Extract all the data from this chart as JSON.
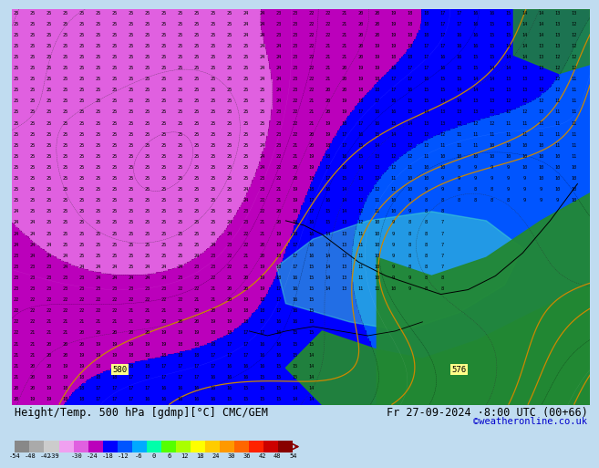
{
  "title_left": "Height/Temp. 500 hPa [gdmp][°C] CMC/GEM",
  "title_right": "Fr 27-09-2024 ·8:00 UTC (00+66)",
  "credit": "©weatheronline.co.uk",
  "colorbar_values": [
    -54,
    -48,
    -42,
    -39,
    -30,
    -24,
    -18,
    -12,
    -6,
    0,
    6,
    12,
    18,
    24,
    30,
    36,
    42,
    48,
    54
  ],
  "colorbar_tick_labels": [
    "-54",
    "-48",
    "-42",
    "-39",
    "-30",
    "-24",
    "-18",
    "-12",
    "-6",
    "0",
    "6",
    "12",
    "18",
    "24",
    "30",
    "36",
    "42",
    "48",
    "54"
  ],
  "colorbar_colors": [
    "#888888",
    "#aaaaaa",
    "#cccccc",
    "#f0a0f0",
    "#e060e0",
    "#bb00bb",
    "#0000ff",
    "#0055ff",
    "#00aaff",
    "#00ffaa",
    "#55ff00",
    "#aaff00",
    "#ffff00",
    "#ffcc00",
    "#ff9900",
    "#ff6600",
    "#ff2200",
    "#cc0000",
    "#880000"
  ],
  "bg_color": "#c0dcf0",
  "bar_bg": "#ffffff",
  "title_font_color": "#000000",
  "title_fontsize": 8.5,
  "credit_color": "#0000cc",
  "credit_fontsize": 7.5,
  "number_color_blue": "#000000",
  "number_color_dark": "#000000",
  "geop_line_color": "#cc8800",
  "geop_label_color": "#888800",
  "contour_label_bbox_color": "#ffff88"
}
